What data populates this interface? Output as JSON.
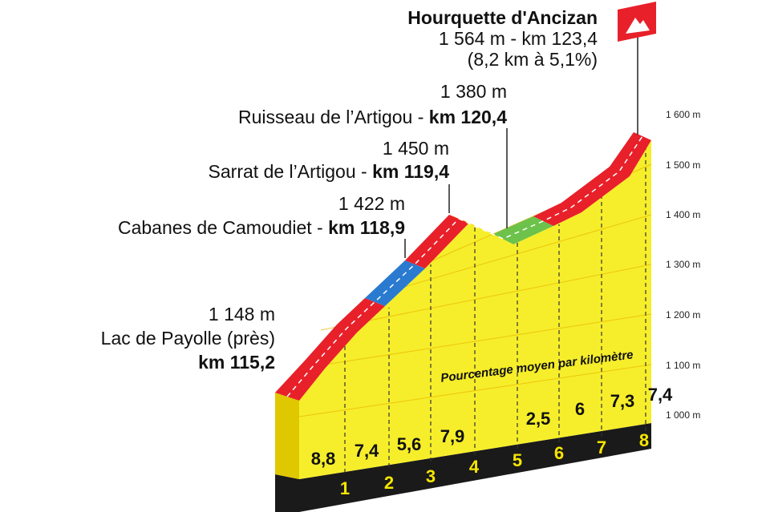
{
  "summit": {
    "name": "Hourquette d'Ancizan",
    "info": "1 564 m - km 123,4",
    "gradient": "(8,2 km à 5,1%)"
  },
  "waypoints": [
    {
      "altitude": "1 380 m",
      "name": "Ruisseau de l’Artigou -",
      "km": "km 120,4"
    },
    {
      "altitude": "1 450 m",
      "name": "Sarrat de l’Artigou -",
      "km": "km 119,4"
    },
    {
      "altitude": "1 422 m",
      "name": "Cabanes de Camoudiet -",
      "km": "km 118,9"
    }
  ],
  "start": {
    "altitude": "1 148 m",
    "name": "Lac de Payolle (près)",
    "km": "km 115,2"
  },
  "caption": "Pourcentage moyen par kilomètre",
  "elevation_ticks": [
    "1 600 m",
    "1 500 m",
    "1 400 m",
    "1 300 m",
    "1 200 m",
    "1 100 m",
    "1 000 m"
  ],
  "gradients": [
    "8,8",
    "7,4",
    "5,6",
    "7,9",
    "2,5",
    "6",
    "7,3",
    "7,4"
  ],
  "km_markers": [
    "1",
    "2",
    "3",
    "4",
    "5",
    "6",
    "7",
    "8"
  ]
}
